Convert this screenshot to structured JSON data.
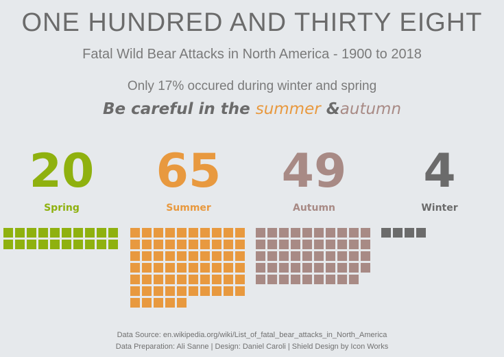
{
  "header": {
    "title": "ONE HUNDRED AND THIRTY EIGHT",
    "subtitle": "Fatal Wild Bear Attacks in North America - 1900 to 2018",
    "stat_line": "Only 17% occured during winter and spring",
    "careful_prefix": "Be careful in the",
    "careful_summer": "summer",
    "careful_amp": "&",
    "careful_autumn": "autumn"
  },
  "chart_data": {
    "type": "waffle",
    "total": 138,
    "categories": [
      "Spring",
      "Summer",
      "Autumn",
      "Winter"
    ],
    "values": [
      20,
      65,
      49,
      4
    ],
    "colors": [
      "#8fb10f",
      "#e8993f",
      "#a88a85",
      "#6b6b6b"
    ]
  },
  "footer": {
    "line1": "Data Source: en.wikipedia.org/wiki/List_of_fatal_bear_attacks_in_North_America",
    "line2": "Data Preparation: Ali Sanne  |  Design: Daniel Caroli  |  Shield Design by Icon Works"
  }
}
